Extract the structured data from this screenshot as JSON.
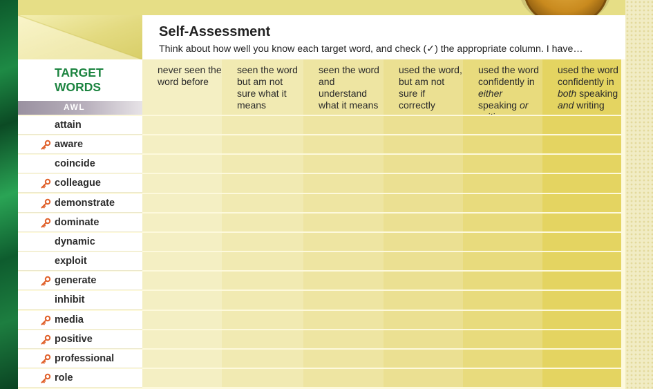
{
  "title": "Self-Assessment",
  "instructions": "Think about how well you know each target word, and check (✓) the appropriate column. I have…",
  "target_words_heading": "TARGET\nWORDS",
  "awl_label": "AWL",
  "columns": [
    {
      "parts": [
        {
          "t": "never seen the word before",
          "i": false
        }
      ],
      "color": "#f4efc3"
    },
    {
      "parts": [
        {
          "t": "seen the word but am not sure what it means",
          "i": false
        }
      ],
      "color": "#f1eab2"
    },
    {
      "parts": [
        {
          "t": "seen the word and understand what it means",
          "i": false
        }
      ],
      "color": "#eee5a2"
    },
    {
      "parts": [
        {
          "t": "used the word, but am not sure if correctly",
          "i": false
        }
      ],
      "color": "#ebe092"
    },
    {
      "parts": [
        {
          "t": "used the word confidently in ",
          "i": false
        },
        {
          "t": "either",
          "i": true
        },
        {
          "t": " speaking ",
          "i": false
        },
        {
          "t": "or",
          "i": true
        },
        {
          "t": " writing",
          "i": false
        }
      ],
      "color": "#e8db7d"
    },
    {
      "parts": [
        {
          "t": "used the word confidently in ",
          "i": false
        },
        {
          "t": "both",
          "i": true
        },
        {
          "t": " speaking ",
          "i": false
        },
        {
          "t": "and",
          "i": true
        },
        {
          "t": " writing",
          "i": false
        }
      ],
      "color": "#e4d461"
    }
  ],
  "words": [
    {
      "word": "attain",
      "awl_key": false
    },
    {
      "word": "aware",
      "awl_key": true
    },
    {
      "word": "coincide",
      "awl_key": false
    },
    {
      "word": "colleague",
      "awl_key": true
    },
    {
      "word": "demonstrate",
      "awl_key": true
    },
    {
      "word": "dominate",
      "awl_key": true
    },
    {
      "word": "dynamic",
      "awl_key": false
    },
    {
      "word": "exploit",
      "awl_key": false
    },
    {
      "word": "generate",
      "awl_key": true
    },
    {
      "word": "inhibit",
      "awl_key": false
    },
    {
      "word": "media",
      "awl_key": true
    },
    {
      "word": "positive",
      "awl_key": true
    },
    {
      "word": "professional",
      "awl_key": true
    },
    {
      "word": "role",
      "awl_key": true
    }
  ],
  "icons": {
    "awl_marker": "key-icon"
  },
  "colors": {
    "heading_green": "#1c8440",
    "key_orange": "#e0602a"
  }
}
